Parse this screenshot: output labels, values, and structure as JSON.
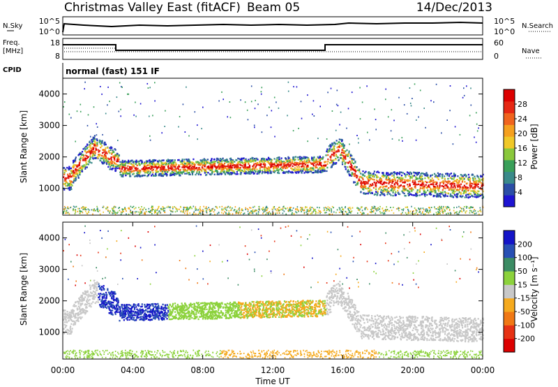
{
  "header": {
    "title": "Christmas Valley East (fitACF)",
    "beam": "Beam 05",
    "date": "14/Dec/2013"
  },
  "strips": {
    "nsky_label": "N.Sky",
    "nsearch_label": "N.Search",
    "nsky_ticks": [
      "10^5",
      "10^0"
    ],
    "nsearch_ticks": [
      "10^5",
      "10^0"
    ],
    "freq_label_1": "Freq.",
    "freq_label_2": "[MHz]",
    "freq_ticks": [
      "18",
      "8"
    ],
    "nave_label": "Nave",
    "nave_ticks": [
      "60",
      "0"
    ],
    "cpid_label": "CPID",
    "cpid_value": "normal (fast) 151 IF"
  },
  "chart_data": [
    {
      "type": "heatmap",
      "name_in_chart": "power",
      "ylabel": "Slant Range [km]",
      "xlabel": "",
      "ylim": [
        150,
        4500
      ],
      "yticks": [
        "4000",
        "3000",
        "2000",
        "1000"
      ],
      "colorbar_label": "Power [dB]",
      "colorbar_ticks": [
        "28",
        "24",
        "20",
        "16",
        "12",
        "8",
        "4"
      ],
      "colors": [
        "#1e14d2",
        "#2b4ea6",
        "#3a8a8a",
        "#3aa05a",
        "#8ac83c",
        "#f0c828",
        "#f5a01e",
        "#f0641e",
        "#e62814",
        "#dc0000"
      ]
    },
    {
      "type": "heatmap",
      "name_in_chart": "velocity",
      "ylabel": "Slant Range [km]",
      "xlabel": "Time UT",
      "ylim": [
        150,
        4500
      ],
      "yticks": [
        "4000",
        "3000",
        "2000",
        "1000"
      ],
      "xticks": [
        "00:00",
        "04:00",
        "08:00",
        "12:00",
        "16:00",
        "20:00",
        "00:00"
      ],
      "colorbar_label": "Velocity [m s⁻¹]",
      "colorbar_ticks": [
        "200",
        "100",
        "50",
        "15",
        "-15",
        "-50",
        "-100",
        "-200"
      ],
      "colors": [
        "#1414c8",
        "#2850b4",
        "#3c8c64",
        "#8cd23c",
        "#c8c8c8",
        "#f5aa1e",
        "#f07814",
        "#e63214",
        "#dc0000"
      ]
    }
  ]
}
